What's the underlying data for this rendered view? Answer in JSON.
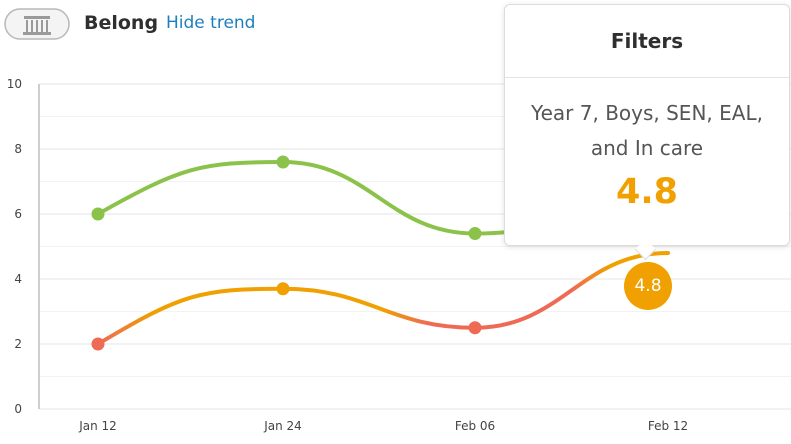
{
  "header": {
    "title": "Belong",
    "hide_trend_label": "Hide trend"
  },
  "tooltip": {
    "title": "Filters",
    "description": "Year 7, Boys, SEN, EAL, and In care",
    "value": "4.8"
  },
  "badge": {
    "value": "4.8"
  },
  "chart_data": {
    "type": "line",
    "categories": [
      "Jan 12",
      "Jan 24",
      "Feb 06",
      "Feb 12"
    ],
    "ylim": [
      0,
      10
    ],
    "yticks": [
      0,
      2,
      4,
      6,
      8,
      10
    ],
    "grid": true,
    "series": [
      {
        "color": "#8bc34a",
        "values": [
          6.0,
          7.6,
          5.4,
          null
        ]
      },
      {
        "color": "#f0a000",
        "values": [
          2.0,
          3.7,
          2.5,
          4.8
        ]
      }
    ]
  }
}
